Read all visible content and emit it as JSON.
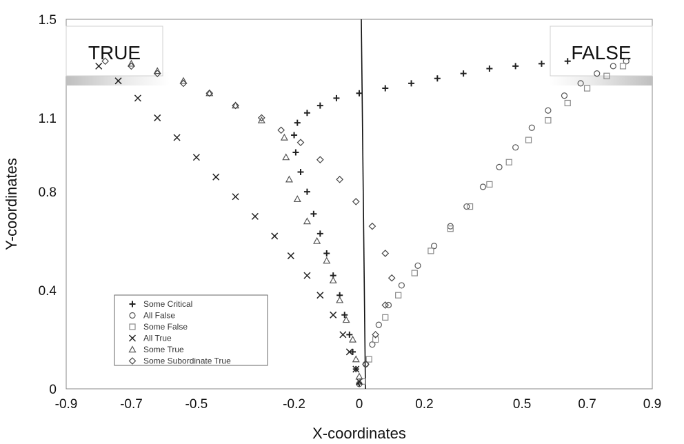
{
  "chart_data": {
    "type": "scatter",
    "xlabel": "X-coordinates",
    "ylabel": "Y-coordinates",
    "xlim": [
      -0.9,
      0.9
    ],
    "ylim": [
      0,
      1.5
    ],
    "x_ticks": [
      "-0.9",
      "-0.7",
      "-0.5",
      "-0.2",
      "0",
      "0.2",
      "0.5",
      "0.7",
      "0.9"
    ],
    "y_ticks": [
      "0",
      "0.4",
      "0.8",
      "1.1",
      "1.5"
    ],
    "annotations": {
      "left_box": "TRUE",
      "right_box": "FALSE"
    },
    "legend": {
      "placement": "bottom-left"
    },
    "series": [
      {
        "name": "Some Critical",
        "marker": "plus",
        "points": [
          [
            0.0,
            0.02
          ],
          [
            -0.01,
            0.08
          ],
          [
            -0.02,
            0.15
          ],
          [
            -0.03,
            0.22
          ],
          [
            -0.045,
            0.3
          ],
          [
            -0.06,
            0.38
          ],
          [
            -0.08,
            0.46
          ],
          [
            -0.1,
            0.55
          ],
          [
            -0.12,
            0.63
          ],
          [
            -0.14,
            0.71
          ],
          [
            -0.16,
            0.8
          ],
          [
            -0.18,
            0.88
          ],
          [
            -0.195,
            0.96
          ],
          [
            -0.2,
            1.03
          ],
          [
            -0.19,
            1.08
          ],
          [
            -0.16,
            1.12
          ],
          [
            -0.12,
            1.15
          ],
          [
            -0.07,
            1.18
          ],
          [
            0.0,
            1.2
          ],
          [
            0.08,
            1.22
          ],
          [
            0.16,
            1.24
          ],
          [
            0.24,
            1.26
          ],
          [
            0.32,
            1.28
          ],
          [
            0.4,
            1.3
          ],
          [
            0.48,
            1.31
          ],
          [
            0.56,
            1.32
          ],
          [
            0.64,
            1.33
          ]
        ]
      },
      {
        "name": "All False",
        "marker": "circle",
        "points": [
          [
            0.0,
            0.02
          ],
          [
            0.02,
            0.1
          ],
          [
            0.04,
            0.18
          ],
          [
            0.06,
            0.26
          ],
          [
            0.09,
            0.34
          ],
          [
            0.13,
            0.42
          ],
          [
            0.18,
            0.5
          ],
          [
            0.23,
            0.58
          ],
          [
            0.28,
            0.66
          ],
          [
            0.33,
            0.74
          ],
          [
            0.38,
            0.82
          ],
          [
            0.43,
            0.9
          ],
          [
            0.48,
            0.98
          ],
          [
            0.53,
            1.06
          ],
          [
            0.58,
            1.13
          ],
          [
            0.63,
            1.19
          ],
          [
            0.68,
            1.24
          ],
          [
            0.73,
            1.28
          ],
          [
            0.78,
            1.31
          ],
          [
            0.82,
            1.33
          ]
        ]
      },
      {
        "name": "Some False",
        "marker": "square",
        "points": [
          [
            0.01,
            0.03
          ],
          [
            0.03,
            0.12
          ],
          [
            0.05,
            0.2
          ],
          [
            0.08,
            0.29
          ],
          [
            0.12,
            0.38
          ],
          [
            0.17,
            0.47
          ],
          [
            0.22,
            0.56
          ],
          [
            0.28,
            0.65
          ],
          [
            0.34,
            0.74
          ],
          [
            0.4,
            0.83
          ],
          [
            0.46,
            0.92
          ],
          [
            0.52,
            1.01
          ],
          [
            0.58,
            1.09
          ],
          [
            0.64,
            1.16
          ],
          [
            0.7,
            1.22
          ],
          [
            0.76,
            1.27
          ],
          [
            0.81,
            1.31
          ]
        ]
      },
      {
        "name": "All True",
        "marker": "x",
        "points": [
          [
            0.0,
            0.03
          ],
          [
            -0.01,
            0.08
          ],
          [
            -0.03,
            0.15
          ],
          [
            -0.05,
            0.22
          ],
          [
            -0.08,
            0.3
          ],
          [
            -0.12,
            0.38
          ],
          [
            -0.16,
            0.46
          ],
          [
            -0.21,
            0.54
          ],
          [
            -0.26,
            0.62
          ],
          [
            -0.32,
            0.7
          ],
          [
            -0.38,
            0.78
          ],
          [
            -0.44,
            0.86
          ],
          [
            -0.5,
            0.94
          ],
          [
            -0.56,
            1.02
          ],
          [
            -0.62,
            1.1
          ],
          [
            -0.68,
            1.18
          ],
          [
            -0.74,
            1.25
          ],
          [
            -0.8,
            1.31
          ]
        ]
      },
      {
        "name": "Some True",
        "marker": "triangle",
        "points": [
          [
            0.0,
            0.05
          ],
          [
            -0.01,
            0.12
          ],
          [
            -0.02,
            0.2
          ],
          [
            -0.04,
            0.28
          ],
          [
            -0.06,
            0.36
          ],
          [
            -0.08,
            0.44
          ],
          [
            -0.1,
            0.52
          ],
          [
            -0.13,
            0.6
          ],
          [
            -0.16,
            0.68
          ],
          [
            -0.19,
            0.77
          ],
          [
            -0.215,
            0.85
          ],
          [
            -0.225,
            0.94
          ],
          [
            -0.23,
            1.02
          ],
          [
            -0.3,
            1.09
          ],
          [
            -0.38,
            1.15
          ],
          [
            -0.46,
            1.2
          ],
          [
            -0.54,
            1.25
          ],
          [
            -0.62,
            1.29
          ],
          [
            -0.7,
            1.32
          ]
        ]
      },
      {
        "name": "Some Subordinate True",
        "marker": "diamond",
        "points": [
          [
            0.02,
            0.1
          ],
          [
            0.05,
            0.22
          ],
          [
            0.08,
            0.34
          ],
          [
            0.1,
            0.45
          ],
          [
            0.08,
            0.55
          ],
          [
            0.04,
            0.66
          ],
          [
            -0.01,
            0.76
          ],
          [
            -0.06,
            0.85
          ],
          [
            -0.12,
            0.93
          ],
          [
            -0.18,
            1.0
          ],
          [
            -0.24,
            1.05
          ],
          [
            -0.3,
            1.1
          ],
          [
            -0.38,
            1.15
          ],
          [
            -0.46,
            1.2
          ],
          [
            -0.54,
            1.24
          ],
          [
            -0.62,
            1.28
          ],
          [
            -0.7,
            1.31
          ],
          [
            -0.78,
            1.33
          ]
        ]
      }
    ]
  }
}
